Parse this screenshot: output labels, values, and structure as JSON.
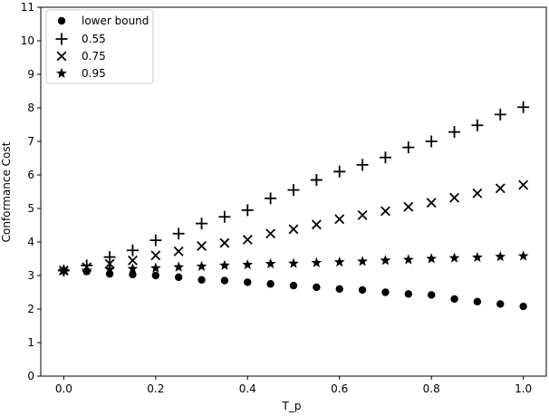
{
  "chart_data": {
    "type": "scatter",
    "title": "",
    "xlabel": "T_p",
    "ylabel": "Conformance Cost",
    "xlim": [
      -0.05,
      1.05
    ],
    "ylim": [
      0,
      11
    ],
    "xticks": [
      0.0,
      0.2,
      0.4,
      0.6,
      0.8,
      1.0
    ],
    "xtick_labels": [
      "0.0",
      "0.2",
      "0.4",
      "0.6",
      "0.8",
      "1.0"
    ],
    "yticks": [
      0,
      1,
      2,
      3,
      4,
      5,
      6,
      7,
      8,
      9,
      10,
      11
    ],
    "ytick_labels": [
      "0",
      "1",
      "2",
      "3",
      "4",
      "5",
      "6",
      "7",
      "8",
      "9",
      "10",
      "11"
    ],
    "grid": false,
    "legend_position": "top-left",
    "x": [
      0.0,
      0.05,
      0.1,
      0.15,
      0.2,
      0.25,
      0.3,
      0.35,
      0.4,
      0.45,
      0.5,
      0.55,
      0.6,
      0.65,
      0.7,
      0.75,
      0.8,
      0.85,
      0.9,
      0.95,
      1.0
    ],
    "series": [
      {
        "name": "lower bound",
        "marker": "circle",
        "color": "#000000",
        "values": [
          3.15,
          3.12,
          3.05,
          3.03,
          3.0,
          2.95,
          2.87,
          2.85,
          2.8,
          2.75,
          2.7,
          2.65,
          2.6,
          2.57,
          2.5,
          2.45,
          2.42,
          2.3,
          2.22,
          2.15,
          2.08
        ]
      },
      {
        "name": "0.55",
        "marker": "plus",
        "color": "#000000",
        "values": [
          3.15,
          3.3,
          3.55,
          3.75,
          4.05,
          4.25,
          4.55,
          4.75,
          4.95,
          5.3,
          5.55,
          5.85,
          6.1,
          6.3,
          6.52,
          6.82,
          7.0,
          7.28,
          7.48,
          7.8,
          8.02
        ]
      },
      {
        "name": "0.75",
        "marker": "x",
        "color": "#000000",
        "values": [
          3.15,
          3.25,
          3.35,
          3.45,
          3.6,
          3.72,
          3.88,
          3.97,
          4.07,
          4.25,
          4.38,
          4.52,
          4.68,
          4.8,
          4.92,
          5.05,
          5.17,
          5.32,
          5.45,
          5.6,
          5.7
        ]
      },
      {
        "name": "0.95",
        "marker": "star",
        "color": "#000000",
        "values": [
          3.15,
          3.15,
          3.18,
          3.2,
          3.22,
          3.25,
          3.27,
          3.3,
          3.32,
          3.35,
          3.36,
          3.38,
          3.4,
          3.42,
          3.45,
          3.47,
          3.5,
          3.52,
          3.54,
          3.56,
          3.58
        ]
      }
    ]
  }
}
